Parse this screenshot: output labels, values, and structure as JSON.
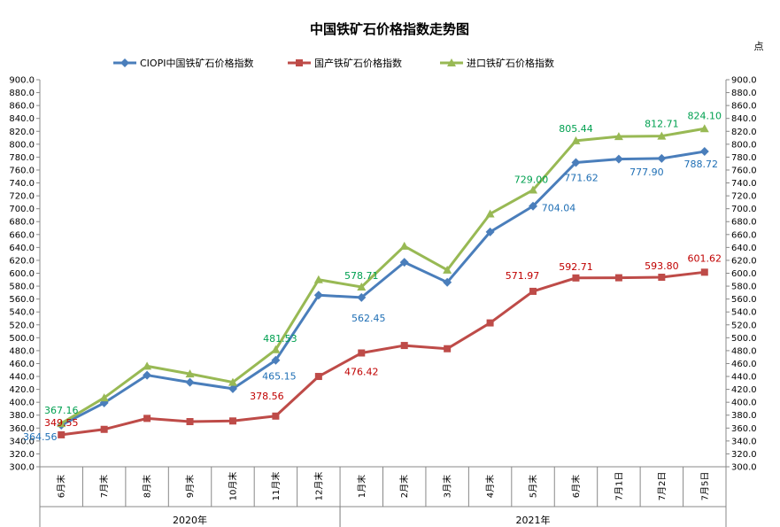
{
  "chart_data": {
    "type": "line",
    "title": "中国铁矿石价格指数走势图",
    "unit_label": "点",
    "ylim": [
      300,
      900
    ],
    "ytick_step": 20,
    "grid": false,
    "legend_position": "top",
    "categories": [
      "6月末",
      "7月末",
      "8月末",
      "9月末",
      "10月末",
      "11月末",
      "12月末",
      "1月末",
      "2月末",
      "3月末",
      "4月末",
      "5月末",
      "6月末",
      "7月1日",
      "7月2日",
      "7月5日"
    ],
    "year_groups": [
      {
        "label": "2020年",
        "start": 0,
        "end": 6
      },
      {
        "label": "2021年",
        "start": 7,
        "end": 15
      }
    ],
    "series": [
      {
        "name": "CIOPI中国铁矿石价格指数",
        "color": "#4a7ebb",
        "marker": "diamond",
        "label_color": "#1f6fb5",
        "values": [
          364.56,
          399,
          442,
          431,
          421,
          465.15,
          566,
          562.45,
          617,
          586,
          664,
          704.04,
          771.62,
          777,
          777.9,
          788.72
        ],
        "labels": [
          "364.56",
          null,
          null,
          null,
          null,
          "465.15",
          null,
          "562.45",
          null,
          null,
          null,
          "704.04",
          "771.62",
          null,
          "777.90",
          "788.72"
        ]
      },
      {
        "name": "国产铁矿石价格指数",
        "color": "#be4b48",
        "marker": "square",
        "label_color": "#c00000",
        "values": [
          349.55,
          358,
          375,
          370,
          371,
          378.56,
          440,
          476.42,
          488,
          483,
          523,
          571.97,
          592.71,
          593,
          593.8,
          601.62
        ],
        "labels": [
          "349.55",
          null,
          null,
          null,
          null,
          "378.56",
          null,
          "476.42",
          null,
          null,
          null,
          "571.97",
          "592.71",
          null,
          "593.80",
          "601.62"
        ]
      },
      {
        "name": "进口铁矿石价格指数",
        "color": "#98b954",
        "marker": "triangle",
        "label_color": "#00a050",
        "values": [
          367.16,
          407,
          456,
          444,
          431,
          481.53,
          590,
          578.71,
          642,
          605,
          692,
          729.0,
          805.44,
          812,
          812.71,
          824.1
        ],
        "labels": [
          "367.16",
          null,
          null,
          null,
          null,
          "481.53",
          null,
          "578.71",
          null,
          null,
          null,
          "729.00",
          "805.44",
          null,
          "812.71",
          "824.10"
        ]
      }
    ]
  }
}
